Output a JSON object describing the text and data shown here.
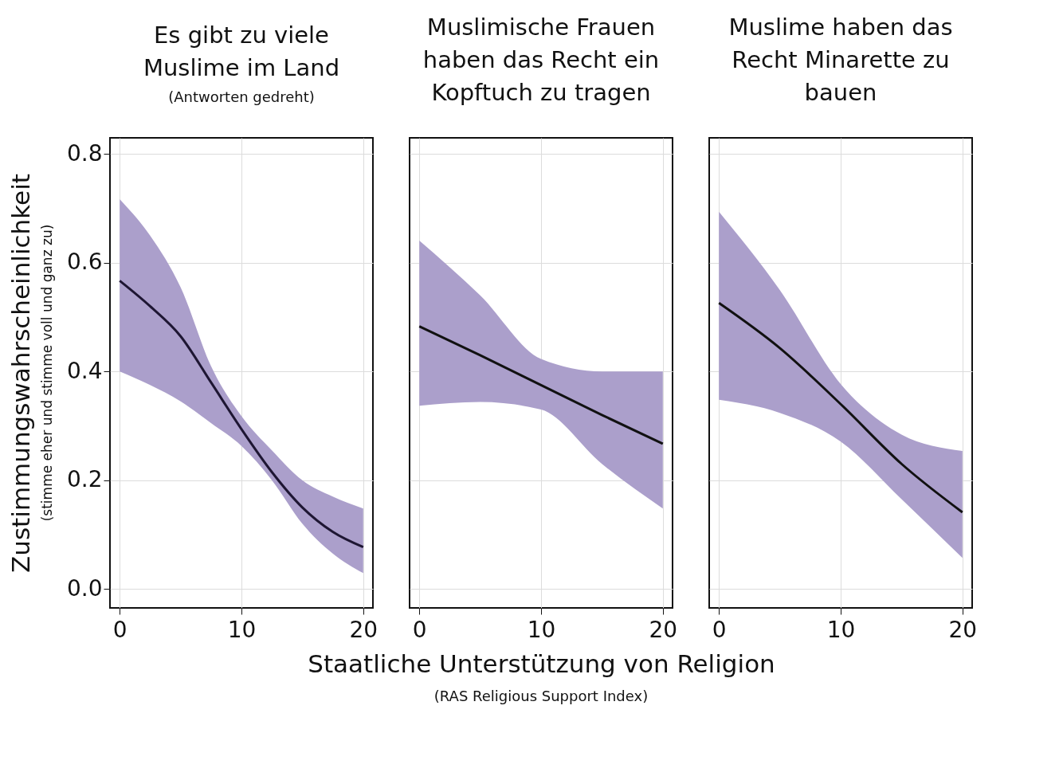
{
  "chart_data": [
    {
      "type": "line",
      "title": "Es gibt zu viele Muslime im Land",
      "subtitle": "(Antworten gedreht)",
      "ylabel": "Zustimmungswahrscheinlichkeit",
      "annotations": [
        "(stimme eher und stimme voll und ganz zu)"
      ],
      "x": [
        0,
        2.5,
        5,
        7.5,
        10,
        12.5,
        15,
        17.5,
        20
      ],
      "series": [
        {
          "color": "#1e1633",
          "values": [
            0.567,
            0.52,
            0.465,
            0.38,
            0.294,
            0.215,
            0.15,
            0.105,
            0.077
          ],
          "lower": [
            0.4,
            0.375,
            0.345,
            0.305,
            0.263,
            0.2,
            0.12,
            0.065,
            0.029
          ],
          "upper": [
            0.717,
            0.65,
            0.555,
            0.41,
            0.318,
            0.255,
            0.2,
            0.17,
            0.148
          ]
        }
      ],
      "xlim": [
        -0.8,
        20.8
      ],
      "ylim": [
        -0.035,
        0.83
      ],
      "xticks": [
        0,
        10,
        20
      ],
      "yticks": [
        {
          "value": 0,
          "label": "0.0"
        },
        {
          "value": 0.2,
          "label": "0.2"
        },
        {
          "value": 0.4,
          "label": "0.4"
        },
        {
          "value": 0.6,
          "label": "0.6"
        },
        {
          "value": 0.8,
          "label": "0.8"
        }
      ],
      "grid": true
    },
    {
      "type": "line",
      "title": "Muslimische Frauen haben das Recht ein Kopftuch zu tragen",
      "xlabel": "Staatliche Unterstützung von Religion",
      "annotations": [
        "(RAS Religious Support Index)"
      ],
      "x": [
        0,
        5,
        10,
        15,
        20
      ],
      "series": [
        {
          "color": "#111111",
          "values": [
            0.483,
            0.43,
            0.375,
            0.32,
            0.267
          ],
          "lower": [
            0.337,
            0.344,
            0.33,
            0.23,
            0.148
          ],
          "upper": [
            0.641,
            0.54,
            0.423,
            0.4,
            0.4
          ]
        }
      ],
      "xlim": [
        -0.8,
        20.8
      ],
      "ylim": [
        -0.035,
        0.83
      ],
      "xticks": [
        0,
        10,
        20
      ],
      "yticks": [
        0,
        0.2,
        0.4,
        0.6,
        0.8
      ],
      "grid": true,
      "tick_labels": "x"
    },
    {
      "type": "line",
      "title": "Muslime haben das Recht Minarette zu bauen",
      "x": [
        0,
        5,
        10,
        15,
        20
      ],
      "series": [
        {
          "color": "#111111",
          "values": [
            0.526,
            0.443,
            0.34,
            0.23,
            0.141
          ],
          "lower": [
            0.348,
            0.324,
            0.271,
            0.165,
            0.057
          ],
          "upper": [
            0.694,
            0.55,
            0.377,
            0.284,
            0.254
          ]
        }
      ],
      "xlim": [
        -0.8,
        20.8
      ],
      "ylim": [
        -0.035,
        0.83
      ],
      "xticks": [
        0,
        10,
        20
      ],
      "yticks": [
        0,
        0.2,
        0.4,
        0.6,
        0.8
      ],
      "grid": true,
      "tick_labels": "x"
    }
  ]
}
